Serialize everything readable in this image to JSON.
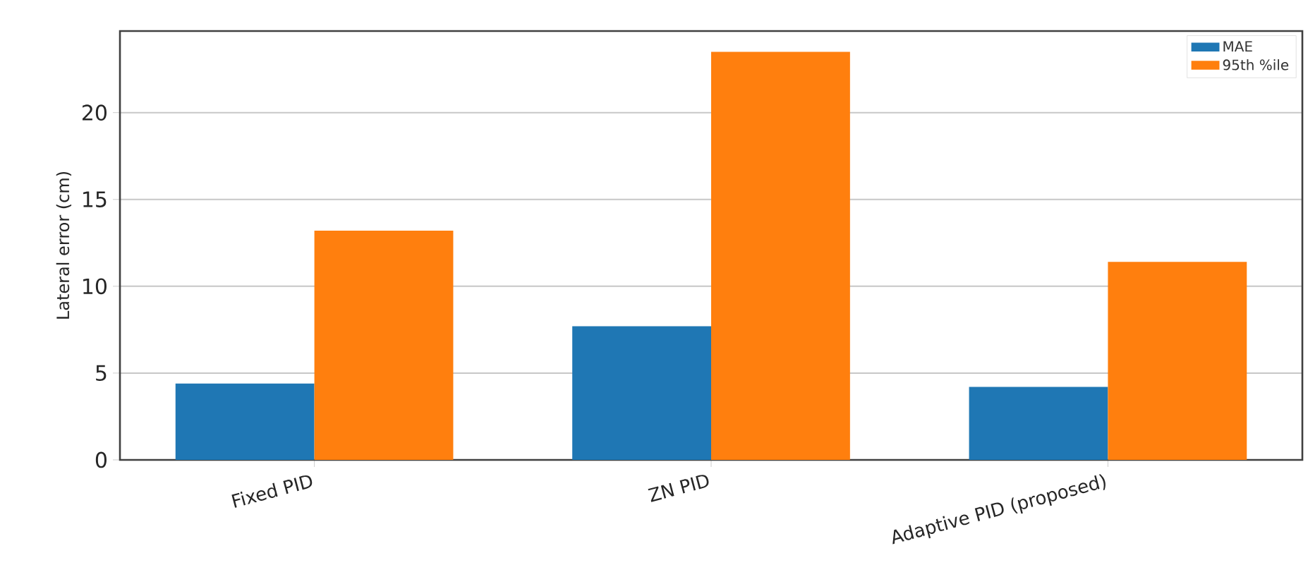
{
  "chart_data": {
    "type": "bar",
    "ylabel": "Lateral error (cm)",
    "categories": [
      "Fixed PID",
      "ZN PID",
      "Adaptive PID (proposed)"
    ],
    "series": [
      {
        "name": "MAE",
        "color": "#1f77b4",
        "values": [
          4.4,
          7.7,
          4.2
        ]
      },
      {
        "name": "95th %ile",
        "color": "#ff7f0e",
        "values": [
          13.2,
          23.5,
          11.4
        ]
      }
    ],
    "ylim": [
      0,
      24.7
    ],
    "yticks": [
      0,
      5,
      10,
      15,
      20
    ],
    "grid": "y",
    "legend": "top right"
  }
}
